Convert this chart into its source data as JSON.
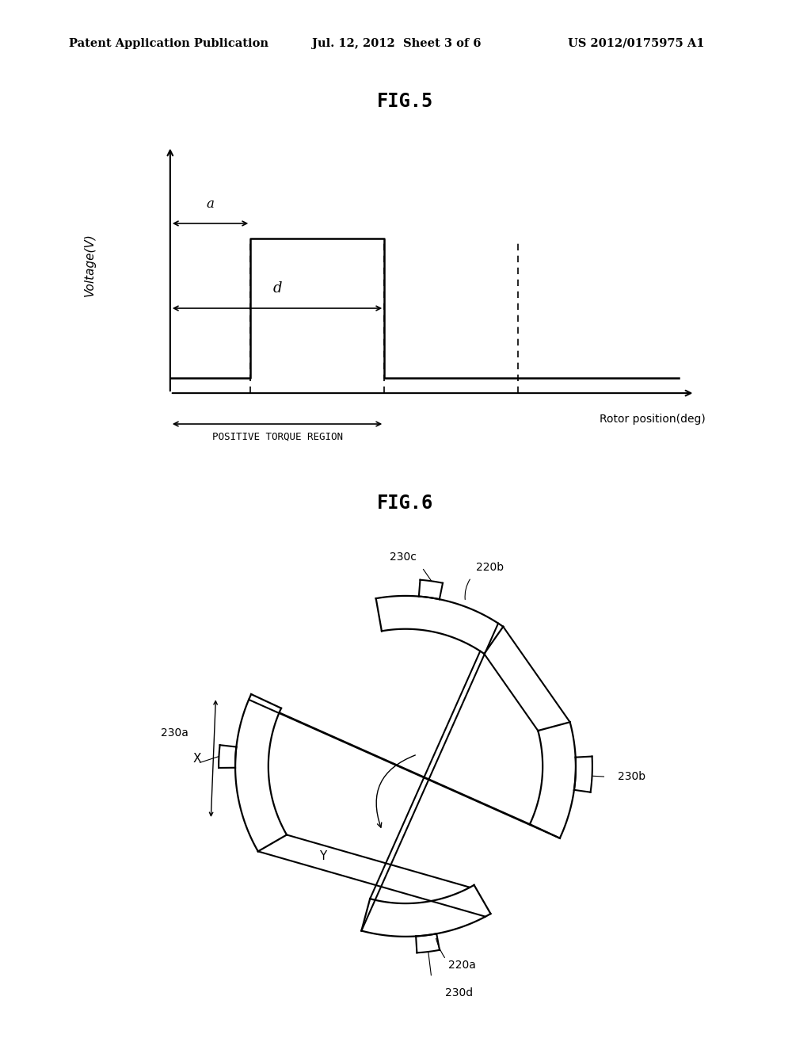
{
  "header_left": "Patent Application Publication",
  "header_center": "Jul. 12, 2012  Sheet 3 of 6",
  "header_right": "US 2012/0175975 A1",
  "fig5_title": "FIG.5",
  "fig6_title": "FIG.6",
  "fig5_ylabel": "Voltage(V)",
  "fig5_xlabel": "Rotor position(deg)",
  "fig5_positive_torque": "POSITIVE TORQUE REGION",
  "fig5_label_a": "a",
  "fig5_label_d": "d",
  "bg_color": "#ffffff",
  "line_color": "#000000",
  "lc_gray": "#555555"
}
